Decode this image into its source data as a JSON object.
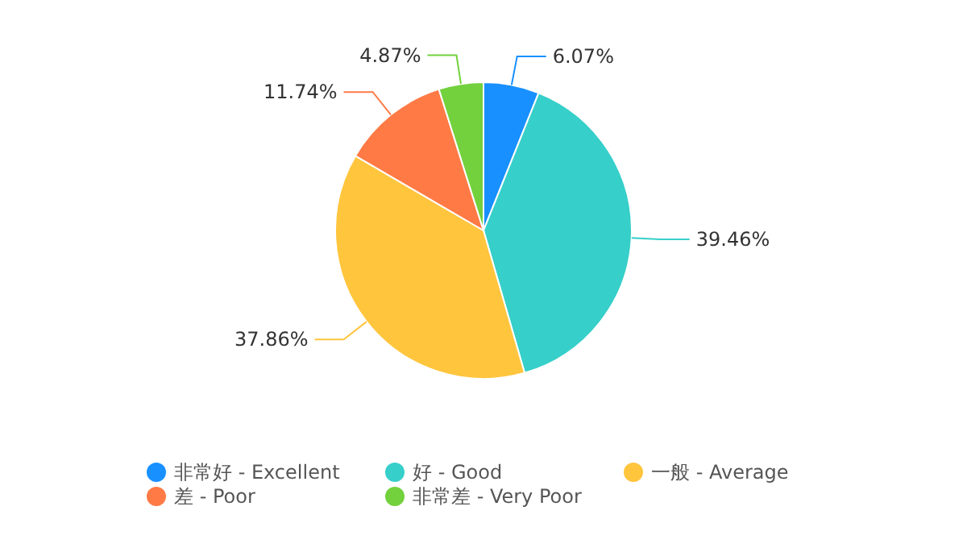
{
  "chart_data": {
    "type": "pie",
    "categories": [
      "非常好 - Excellent",
      "好 - Good",
      "一般 - Average",
      "差 - Poor",
      "非常差 - Very Poor"
    ],
    "values": [
      6.07,
      39.46,
      37.86,
      11.74,
      4.87
    ],
    "value_labels": [
      "6.07%",
      "39.46%",
      "37.86%",
      "11.74%",
      "4.87%"
    ],
    "colors": [
      "#1890ff",
      "#36cfc9",
      "#ffc53d",
      "#ff7a45",
      "#73d13d"
    ],
    "legend": "bottom"
  }
}
